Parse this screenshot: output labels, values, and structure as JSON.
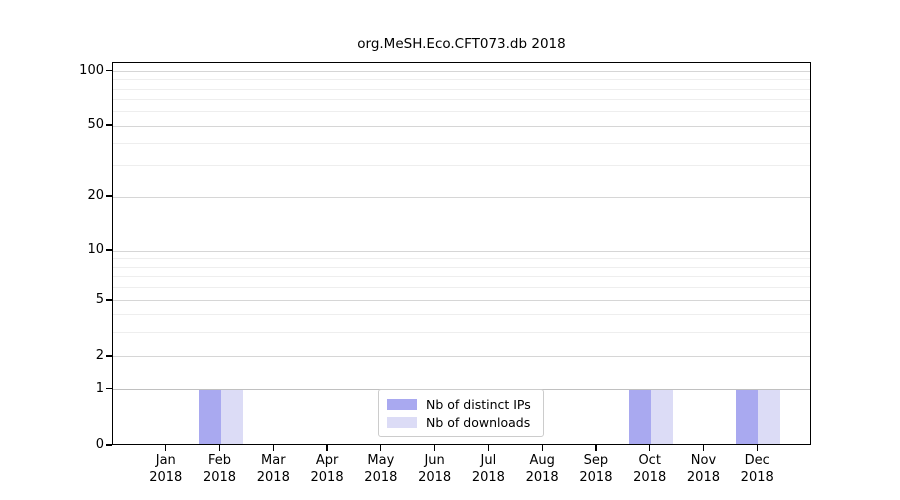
{
  "chart_data": {
    "type": "bar",
    "title": "org.MeSH.Eco.CFT073.db 2018",
    "categories": [
      "Jan 2018",
      "Feb 2018",
      "Mar 2018",
      "Apr 2018",
      "May 2018",
      "Jun 2018",
      "Jul 2018",
      "Aug 2018",
      "Sep 2018",
      "Oct 2018",
      "Nov 2018",
      "Dec 2018"
    ],
    "series": [
      {
        "name": "Nb of distinct IPs",
        "color": "#a9a9f0",
        "values": [
          0,
          1,
          0,
          0,
          0,
          0,
          0,
          0,
          0,
          1,
          0,
          1
        ]
      },
      {
        "name": "Nb of downloads",
        "color": "#dcdcf6",
        "values": [
          0,
          1,
          0,
          0,
          0,
          0,
          0,
          0,
          0,
          1,
          0,
          1
        ]
      }
    ],
    "xlabel": "",
    "ylabel": "",
    "y_axis": {
      "ticks": [
        0,
        1,
        2,
        5,
        10,
        20,
        50,
        100
      ],
      "minor_ticks": [
        3,
        4,
        6,
        7,
        8,
        9,
        30,
        40,
        60,
        70,
        80,
        90
      ],
      "scale": "log-like with linear 0-to-1 segment",
      "tick_fractions": {
        "0": 1.0,
        "1": 0.8525,
        "2": 0.7676,
        "5": 0.6214,
        "10": 0.4909,
        "20": 0.3499,
        "50": 0.1645,
        "100": 0.0222
      }
    },
    "grid": true,
    "legend": {
      "position": "lower center",
      "entries": [
        "Nb of distinct IPs",
        "Nb of downloads"
      ]
    }
  },
  "colors": {
    "background": "#ffffff",
    "spine": "#000000",
    "grid_major": "#d6d6d6",
    "grid_minor": "#eeeeee",
    "grid_one_line": "#c0c0c0",
    "legend_border": "#cccccc",
    "bar_distinct_ips": "#a9a9f0",
    "bar_downloads": "#dcdcf6"
  }
}
